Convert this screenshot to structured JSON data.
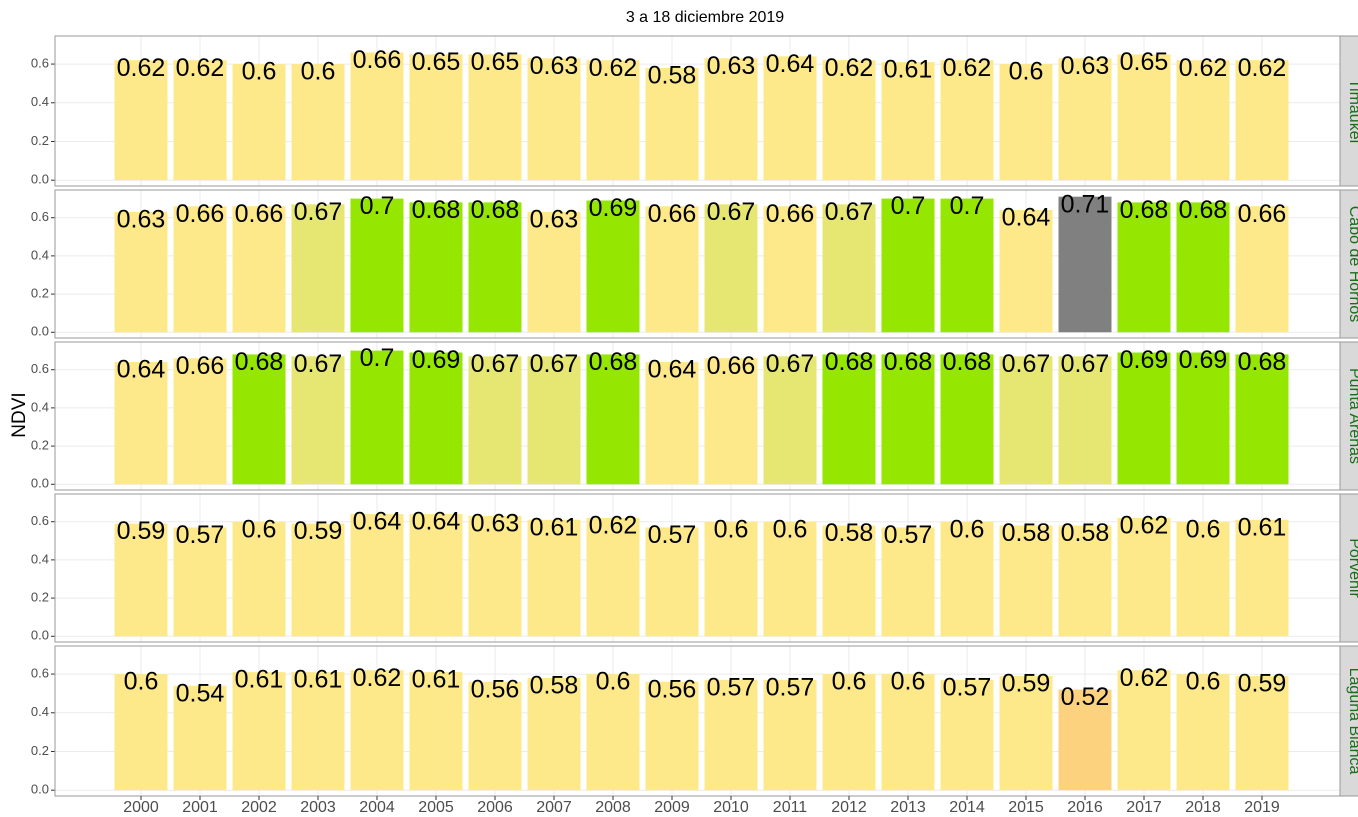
{
  "chart_data": {
    "type": "bar",
    "title": "3 a 18 diciembre 2019",
    "y_label": "NDVI",
    "categories": [
      "2000",
      "2001",
      "2002",
      "2003",
      "2004",
      "2005",
      "2006",
      "2007",
      "2008",
      "2009",
      "2010",
      "2011",
      "2012",
      "2013",
      "2014",
      "2015",
      "2016",
      "2017",
      "2018",
      "2019"
    ],
    "ylim": [
      -0.03,
      0.745
    ],
    "yticks": [
      {
        "value": 0,
        "label": "0.0"
      },
      0.2,
      0.4,
      0.6
    ],
    "grid": true,
    "facets": [
      {
        "label": "Timaukel",
        "values": [
          0.62,
          0.62,
          0.6,
          0.6,
          0.66,
          0.65,
          0.65,
          0.63,
          0.62,
          0.58,
          0.63,
          0.64,
          0.62,
          0.61,
          0.62,
          0.6,
          0.63,
          0.65,
          0.62,
          0.62
        ],
        "colors": [
          "#fde88a",
          "#fde88a",
          "#fde88a",
          "#fde88a",
          "#fde88a",
          "#fde88a",
          "#fde88a",
          "#fde88a",
          "#fde88a",
          "#fde88a",
          "#fde88a",
          "#fde88a",
          "#fde88a",
          "#fde88a",
          "#fde88a",
          "#fde88a",
          "#fde88a",
          "#fde88a",
          "#fde88a",
          "#fde88a"
        ]
      },
      {
        "label": "Cabo de Hornos",
        "values": [
          0.63,
          0.66,
          0.66,
          0.67,
          0.7,
          0.68,
          0.68,
          0.63,
          0.69,
          0.66,
          0.67,
          0.66,
          0.67,
          0.7,
          0.7,
          0.64,
          0.71,
          0.68,
          0.68,
          0.66
        ],
        "colors": [
          "#fde88a",
          "#fde88a",
          "#fde88a",
          "#e6e673",
          "#95e600",
          "#95e600",
          "#95e600",
          "#fde88a",
          "#95e600",
          "#fde88a",
          "#e6e673",
          "#fde88a",
          "#e6e673",
          "#95e600",
          "#95e600",
          "#fde88a",
          "#808080",
          "#95e600",
          "#95e600",
          "#fde88a"
        ]
      },
      {
        "label": "Punta Arenas",
        "values": [
          0.64,
          0.66,
          0.68,
          0.67,
          0.7,
          0.69,
          0.67,
          0.67,
          0.68,
          0.64,
          0.66,
          0.67,
          0.68,
          0.68,
          0.68,
          0.67,
          0.67,
          0.69,
          0.69,
          0.68
        ],
        "colors": [
          "#fde88a",
          "#fde88a",
          "#95e600",
          "#e6e673",
          "#95e600",
          "#95e600",
          "#e6e673",
          "#e6e673",
          "#95e600",
          "#fde88a",
          "#fde88a",
          "#e6e673",
          "#95e600",
          "#95e600",
          "#95e600",
          "#e6e673",
          "#e6e673",
          "#95e600",
          "#95e600",
          "#95e600"
        ]
      },
      {
        "label": "Porvenir",
        "values": [
          0.59,
          0.57,
          0.6,
          0.59,
          0.64,
          0.64,
          0.63,
          0.61,
          0.62,
          0.57,
          0.6,
          0.6,
          0.58,
          0.57,
          0.6,
          0.58,
          0.58,
          0.62,
          0.6,
          0.61
        ],
        "colors": [
          "#fde88a",
          "#fde88a",
          "#fde88a",
          "#fde88a",
          "#fde88a",
          "#fde88a",
          "#fde88a",
          "#fde88a",
          "#fde88a",
          "#fde88a",
          "#fde88a",
          "#fde88a",
          "#fde88a",
          "#fde88a",
          "#fde88a",
          "#fde88a",
          "#fde88a",
          "#fde88a",
          "#fde88a",
          "#fde88a"
        ]
      },
      {
        "label": "Laguna Blanca",
        "values": [
          0.6,
          0.54,
          0.61,
          0.61,
          0.62,
          0.61,
          0.56,
          0.58,
          0.6,
          0.56,
          0.57,
          0.57,
          0.6,
          0.6,
          0.57,
          0.59,
          0.52,
          0.62,
          0.6,
          0.59
        ],
        "colors": [
          "#fde88a",
          "#fde88a",
          "#fde88a",
          "#fde88a",
          "#fde88a",
          "#fde88a",
          "#fde88a",
          "#fde88a",
          "#fde88a",
          "#fde88a",
          "#fde88a",
          "#fde88a",
          "#fde88a",
          "#fde88a",
          "#fde88a",
          "#fde88a",
          "#fdd27f",
          "#fde88a",
          "#fde88a",
          "#fde88a"
        ]
      }
    ]
  }
}
